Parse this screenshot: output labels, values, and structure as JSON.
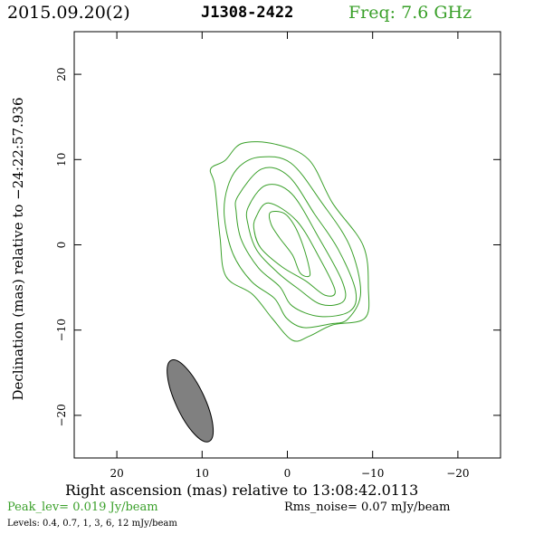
{
  "header": {
    "date": "2015.09.20(2)",
    "source": "J1308-2422",
    "frequency": "Freq: 7.6 GHz"
  },
  "footer": {
    "peak": "Peak_lev=  0.019 Jy/beam",
    "rms": "Rms_noise= 0.07 mJy/beam",
    "levels": "Levels: 0.4, 0.7,   1,   3,   6,  12 mJy/beam"
  },
  "colors": {
    "contour": "#3aa02a",
    "beam_fill": "#808080",
    "frame": "#000000"
  },
  "chart_data": {
    "type": "contour",
    "xlabel": "Right ascension (mas) relative to 13:08:42.0113",
    "ylabel": "Declination (mas) relative to −24:22:57.936",
    "xlim": [
      25,
      -25
    ],
    "ylim": [
      -25,
      25
    ],
    "xticks": [
      20,
      10,
      0,
      -10,
      -20
    ],
    "yticks": [
      20,
      10,
      0,
      -10,
      -20
    ],
    "xtick_labels": [
      "20",
      "10",
      "0",
      "−10",
      "−20"
    ],
    "ytick_labels": [
      "20",
      "10",
      "0",
      "−10",
      "−20"
    ],
    "contour_levels_mJy": [
      0.4,
      0.7,
      1,
      3,
      6,
      12
    ],
    "contours": [
      {
        "level": 0.4,
        "points": [
          [
            8.5,
            6.9
          ],
          [
            9.0,
            8.9
          ],
          [
            7.3,
            9.9
          ],
          [
            5.3,
            11.9
          ],
          [
            1.4,
            11.8
          ],
          [
            -2.5,
            10.0
          ],
          [
            -5.3,
            4.9
          ],
          [
            -8.9,
            -0.1
          ],
          [
            -9.5,
            -5.1
          ],
          [
            -9.1,
            -8.6
          ],
          [
            -5.3,
            -9.4
          ],
          [
            -2.6,
            -10.7
          ],
          [
            -0.6,
            -11.2
          ],
          [
            1.8,
            -8.6
          ],
          [
            4.1,
            -5.8
          ],
          [
            7.2,
            -3.7
          ],
          [
            7.9,
            0.9
          ]
        ]
      },
      {
        "level": 0.7,
        "points": [
          [
            7.0,
            6.8
          ],
          [
            5.6,
            9.2
          ],
          [
            3.2,
            10.3
          ],
          [
            -0.4,
            9.6
          ],
          [
            -4.0,
            5.0
          ],
          [
            -7.3,
            -0.1
          ],
          [
            -8.6,
            -5.6
          ],
          [
            -7.1,
            -8.7
          ],
          [
            -4.9,
            -9.3
          ],
          [
            -1.9,
            -9.7
          ],
          [
            0.1,
            -8.6
          ],
          [
            1.5,
            -6.3
          ],
          [
            4.2,
            -4.3
          ],
          [
            6.4,
            -1.0
          ],
          [
            7.4,
            3.4
          ]
        ]
      },
      {
        "level": 1,
        "points": [
          [
            5.8,
            5.7
          ],
          [
            3.0,
            8.9
          ],
          [
            -0.1,
            8.1
          ],
          [
            -3.2,
            3.6
          ],
          [
            -6.0,
            -0.6
          ],
          [
            -8.0,
            -5.4
          ],
          [
            -7.3,
            -7.8
          ],
          [
            -3.8,
            -8.4
          ],
          [
            -0.6,
            -7.2
          ],
          [
            0.9,
            -4.9
          ],
          [
            3.4,
            -2.7
          ],
          [
            5.4,
            0.6
          ],
          [
            6.0,
            3.8
          ]
        ]
      },
      {
        "level": 3,
        "points": [
          [
            4.6,
            4.4
          ],
          [
            2.5,
            7.0
          ],
          [
            -0.5,
            6.0
          ],
          [
            -3.7,
            0.8
          ],
          [
            -6.4,
            -4.2
          ],
          [
            -6.6,
            -6.6
          ],
          [
            -4.0,
            -7.0
          ],
          [
            -1.2,
            -5.1
          ],
          [
            1.2,
            -3.2
          ],
          [
            3.6,
            -0.6
          ],
          [
            4.6,
            2.3
          ]
        ]
      },
      {
        "level": 6,
        "points": [
          [
            3.7,
            3.2
          ],
          [
            2.2,
            4.9
          ],
          [
            -1.1,
            2.8
          ],
          [
            -3.8,
            -1.6
          ],
          [
            -5.6,
            -5.4
          ],
          [
            -4.4,
            -5.9
          ],
          [
            -2.1,
            -4.2
          ],
          [
            0.6,
            -2.6
          ],
          [
            3.1,
            -0.4
          ],
          [
            3.9,
            1.7
          ]
        ]
      },
      {
        "level": 12,
        "points": [
          [
            2.0,
            3.8
          ],
          [
            0.4,
            3.7
          ],
          [
            -0.8,
            2.3
          ],
          [
            -1.8,
            0.0
          ],
          [
            -2.6,
            -2.9
          ],
          [
            -2.5,
            -3.7
          ],
          [
            -1.5,
            -3.3
          ],
          [
            -0.6,
            -1.2
          ],
          [
            0.9,
            0.8
          ],
          [
            1.9,
            2.4
          ]
        ]
      }
    ],
    "beam": {
      "center": [
        11.4,
        -18.3
      ],
      "major_mas": 10.5,
      "minor_mas": 3.4,
      "pa_deg": 25
    }
  }
}
